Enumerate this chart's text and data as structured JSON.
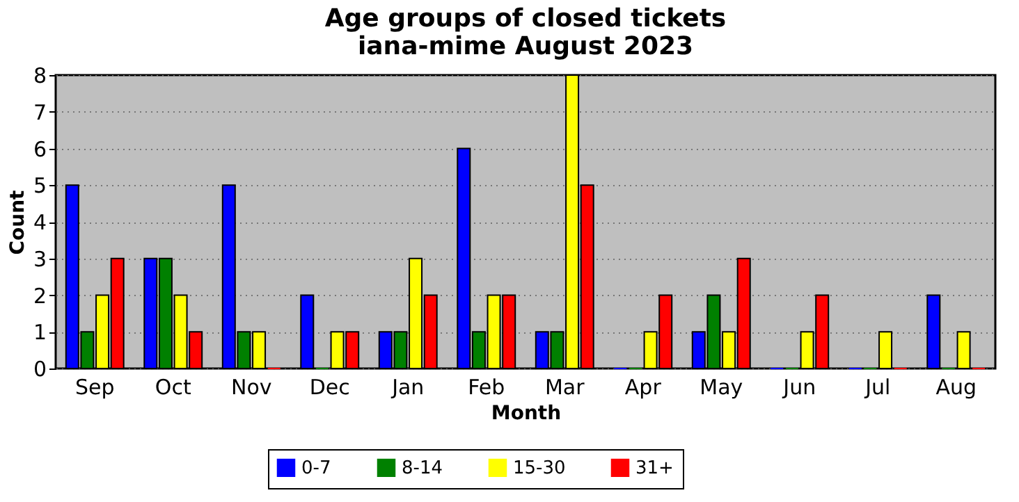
{
  "chart_data": {
    "type": "bar",
    "title": "Age groups of closed tickets\niana-mime August 2023",
    "xlabel": "Month",
    "ylabel": "Count",
    "categories": [
      "Sep",
      "Oct",
      "Nov",
      "Dec",
      "Jan",
      "Feb",
      "Mar",
      "Apr",
      "May",
      "Jun",
      "Jul",
      "Aug"
    ],
    "series": [
      {
        "name": "0-7",
        "color": "#0000ff",
        "values": [
          5,
          3,
          5,
          2,
          1,
          6,
          1,
          0,
          1,
          0,
          0,
          2
        ]
      },
      {
        "name": "8-14",
        "color": "#008000",
        "values": [
          1,
          3,
          1,
          0,
          1,
          1,
          1,
          0,
          2,
          0,
          0,
          0
        ]
      },
      {
        "name": "15-30",
        "color": "#ffff00",
        "values": [
          2,
          2,
          1,
          1,
          3,
          2,
          8,
          1,
          1,
          1,
          1,
          1
        ]
      },
      {
        "name": "31+",
        "color": "#ff0000",
        "values": [
          3,
          1,
          0,
          1,
          2,
          2,
          5,
          2,
          3,
          2,
          0,
          0
        ]
      }
    ],
    "ylim": [
      0,
      8
    ],
    "yticks": [
      0,
      1,
      2,
      3,
      4,
      5,
      6,
      7,
      8
    ],
    "grid": "y",
    "legend": "bottom"
  }
}
